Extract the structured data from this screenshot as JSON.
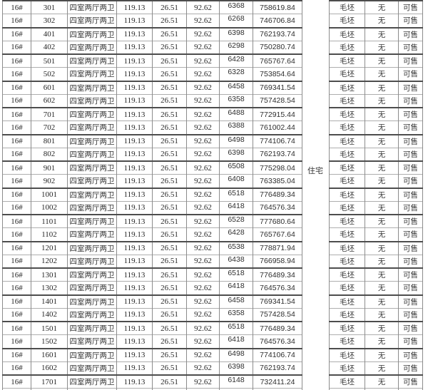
{
  "category_label": "住宅",
  "table": {
    "column_keys": [
      "building",
      "room_no",
      "unit_type",
      "built_area",
      "shared_area",
      "inner_area",
      "unit_price",
      "total_price",
      "finish",
      "decoration",
      "sale_status"
    ],
    "rows": [
      [
        "16#",
        "301",
        "四室两厅两卫",
        "119.13",
        "26.51",
        "92.62",
        "6368",
        "758619.84",
        "毛坯",
        "无",
        "可售"
      ],
      [
        "16#",
        "302",
        "四室两厅两卫",
        "119.13",
        "26.51",
        "92.62",
        "6268",
        "746706.84",
        "毛坯",
        "无",
        "可售"
      ],
      [
        "16#",
        "401",
        "四室两厅两卫",
        "119.13",
        "26.51",
        "92.62",
        "6398",
        "762193.74",
        "毛坯",
        "无",
        "可售"
      ],
      [
        "16#",
        "402",
        "四室两厅两卫",
        "119.13",
        "26.51",
        "92.62",
        "6298",
        "750280.74",
        "毛坯",
        "无",
        "可售"
      ],
      [
        "16#",
        "501",
        "四室两厅两卫",
        "119.13",
        "26.51",
        "92.62",
        "6428",
        "765767.64",
        "毛坯",
        "无",
        "可售"
      ],
      [
        "16#",
        "502",
        "四室两厅两卫",
        "119.13",
        "26.51",
        "92.62",
        "6328",
        "753854.64",
        "毛坯",
        "无",
        "可售"
      ],
      [
        "16#",
        "601",
        "四室两厅两卫",
        "119.13",
        "26.51",
        "92.62",
        "6458",
        "769341.54",
        "毛坯",
        "无",
        "可售"
      ],
      [
        "16#",
        "602",
        "四室两厅两卫",
        "119.13",
        "26.51",
        "92.62",
        "6358",
        "757428.54",
        "毛坯",
        "无",
        "可售"
      ],
      [
        "16#",
        "701",
        "四室两厅两卫",
        "119.13",
        "26.51",
        "92.62",
        "6488",
        "772915.44",
        "毛坯",
        "无",
        "可售"
      ],
      [
        "16#",
        "702",
        "四室两厅两卫",
        "119.13",
        "26.51",
        "92.62",
        "6388",
        "761002.44",
        "毛坯",
        "无",
        "可售"
      ],
      [
        "16#",
        "801",
        "四室两厅两卫",
        "119.13",
        "26.51",
        "92.62",
        "6498",
        "774106.74",
        "毛坯",
        "无",
        "可售"
      ],
      [
        "16#",
        "802",
        "四室两厅两卫",
        "119.13",
        "26.51",
        "92.62",
        "6398",
        "762193.74",
        "毛坯",
        "无",
        "可售"
      ],
      [
        "16#",
        "901",
        "四室两厅两卫",
        "119.13",
        "26.51",
        "92.62",
        "6508",
        "775298.04",
        "毛坯",
        "无",
        "可售"
      ],
      [
        "16#",
        "902",
        "四室两厅两卫",
        "119.13",
        "26.51",
        "92.62",
        "6408",
        "763385.04",
        "毛坯",
        "无",
        "可售"
      ],
      [
        "16#",
        "1001",
        "四室两厅两卫",
        "119.13",
        "26.51",
        "92.62",
        "6518",
        "776489.34",
        "毛坯",
        "无",
        "可售"
      ],
      [
        "16#",
        "1002",
        "四室两厅两卫",
        "119.13",
        "26.51",
        "92.62",
        "6418",
        "764576.34",
        "毛坯",
        "无",
        "可售"
      ],
      [
        "16#",
        "1101",
        "四室两厅两卫",
        "119.13",
        "26.51",
        "92.62",
        "6528",
        "777680.64",
        "毛坯",
        "无",
        "可售"
      ],
      [
        "16#",
        "1102",
        "四室两厅两卫",
        "119.13",
        "26.51",
        "92.62",
        "6428",
        "765767.64",
        "毛坯",
        "无",
        "可售"
      ],
      [
        "16#",
        "1201",
        "四室两厅两卫",
        "119.13",
        "26.51",
        "92.62",
        "6538",
        "778871.94",
        "毛坯",
        "无",
        "可售"
      ],
      [
        "16#",
        "1202",
        "四室两厅两卫",
        "119.13",
        "26.51",
        "92.62",
        "6438",
        "766958.94",
        "毛坯",
        "无",
        "可售"
      ],
      [
        "16#",
        "1301",
        "四室两厅两卫",
        "119.13",
        "26.51",
        "92.62",
        "6518",
        "776489.34",
        "毛坯",
        "无",
        "可售"
      ],
      [
        "16#",
        "1302",
        "四室两厅两卫",
        "119.13",
        "26.51",
        "92.62",
        "6418",
        "764576.34",
        "毛坯",
        "无",
        "可售"
      ],
      [
        "16#",
        "1401",
        "四室两厅两卫",
        "119.13",
        "26.51",
        "92.62",
        "6458",
        "769341.54",
        "毛坯",
        "无",
        "可售"
      ],
      [
        "16#",
        "1402",
        "四室两厅两卫",
        "119.13",
        "26.51",
        "92.62",
        "6358",
        "757428.54",
        "毛坯",
        "无",
        "可售"
      ],
      [
        "16#",
        "1501",
        "四室两厅两卫",
        "119.13",
        "26.51",
        "92.62",
        "6518",
        "776489.34",
        "毛坯",
        "无",
        "可售"
      ],
      [
        "16#",
        "1502",
        "四室两厅两卫",
        "119.13",
        "26.51",
        "92.62",
        "6418",
        "764576.34",
        "毛坯",
        "无",
        "可售"
      ],
      [
        "16#",
        "1601",
        "四室两厅两卫",
        "119.13",
        "26.51",
        "92.62",
        "6498",
        "774106.74",
        "毛坯",
        "无",
        "可售"
      ],
      [
        "16#",
        "1602",
        "四室两厅两卫",
        "119.13",
        "26.51",
        "92.62",
        "6398",
        "762193.74",
        "毛坯",
        "无",
        "可售"
      ],
      [
        "16#",
        "1701",
        "四室两厅两卫",
        "119.13",
        "26.51",
        "92.62",
        "6148",
        "732411.24",
        "毛坯",
        "无",
        "可售"
      ]
    ]
  }
}
